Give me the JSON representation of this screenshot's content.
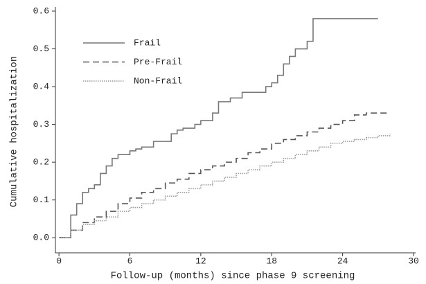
{
  "chart_data": {
    "type": "step",
    "xlabel": "Follow-up (months) since phase 9 screening",
    "ylabel": "Cumulative hospitalization",
    "xlim": [
      -0.3,
      30
    ],
    "xticks": [
      0,
      6,
      12,
      18,
      24,
      30
    ],
    "ylim": [
      -0.04,
      0.6
    ],
    "yticks": [
      {
        "value": 0,
        "label": "0.0"
      },
      0.1,
      0.2,
      0.3,
      0.4,
      0.5,
      0.6
    ],
    "legend": "upper-left",
    "series": [
      {
        "name": "Frail",
        "color": "#777777",
        "dash": "solid",
        "x": [
          0,
          1,
          1.5,
          2,
          2.5,
          3,
          3.5,
          4,
          4.5,
          5,
          6,
          6.5,
          7,
          8,
          9.5,
          10,
          10.5,
          11.5,
          12,
          13,
          13.5,
          14.5,
          15.5,
          17.5,
          18,
          18.5,
          19,
          19.5,
          20,
          21,
          21.5,
          27
        ],
        "values": [
          0,
          0.06,
          0.09,
          0.12,
          0.13,
          0.14,
          0.17,
          0.19,
          0.21,
          0.22,
          0.23,
          0.235,
          0.24,
          0.255,
          0.275,
          0.285,
          0.29,
          0.3,
          0.31,
          0.33,
          0.36,
          0.37,
          0.385,
          0.4,
          0.41,
          0.43,
          0.46,
          0.48,
          0.5,
          0.52,
          0.58,
          0.58
        ]
      },
      {
        "name": "Pre-Frail",
        "color": "#555555",
        "dash": "dashed",
        "x": [
          0,
          1,
          2,
          3,
          4,
          5,
          6,
          7,
          8,
          9,
          10,
          11,
          12,
          13,
          14,
          15,
          16,
          17,
          18,
          19,
          20,
          21,
          22,
          23,
          24,
          25,
          26,
          28
        ],
        "values": [
          0,
          0.02,
          0.04,
          0.055,
          0.07,
          0.09,
          0.105,
          0.12,
          0.13,
          0.145,
          0.155,
          0.17,
          0.18,
          0.19,
          0.2,
          0.21,
          0.225,
          0.235,
          0.25,
          0.26,
          0.27,
          0.28,
          0.29,
          0.3,
          0.31,
          0.325,
          0.33,
          0.33
        ]
      },
      {
        "name": "Non-Frail",
        "color": "#999999",
        "dash": "dotted",
        "x": [
          0,
          1,
          2,
          3,
          4,
          5,
          6,
          7,
          8,
          9,
          10,
          11,
          12,
          13,
          14,
          15,
          16,
          17,
          18,
          19,
          20,
          21,
          22,
          23,
          24,
          25,
          26,
          27,
          28
        ],
        "values": [
          0,
          0.02,
          0.035,
          0.045,
          0.055,
          0.07,
          0.08,
          0.09,
          0.1,
          0.11,
          0.12,
          0.13,
          0.14,
          0.15,
          0.16,
          0.17,
          0.18,
          0.19,
          0.2,
          0.21,
          0.22,
          0.23,
          0.24,
          0.25,
          0.255,
          0.26,
          0.265,
          0.27,
          0.275
        ]
      }
    ]
  }
}
